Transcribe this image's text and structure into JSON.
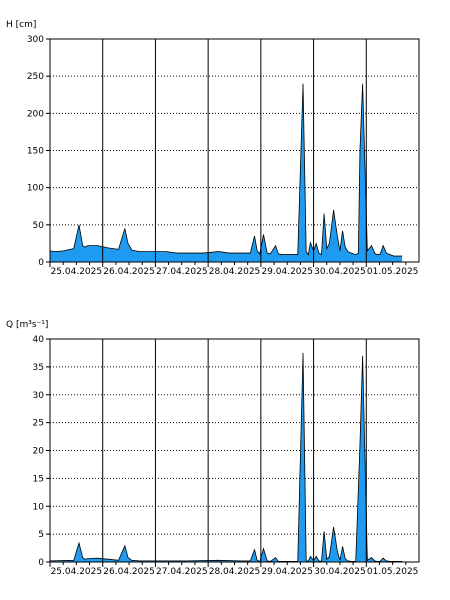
{
  "colors": {
    "fill": "#1e9bf0",
    "line": "#000000",
    "grid": "#000000",
    "background": "#ffffff"
  },
  "chart_data": [
    {
      "type": "area",
      "ylabel": "H [cm]",
      "ylim": [
        0,
        300
      ],
      "yticks": [
        "0",
        "50",
        "100",
        "150",
        "200",
        "250",
        "300"
      ],
      "xlim": [
        0,
        7
      ],
      "xticks": [
        "25.04.2025",
        "26.04.2025",
        "27.04.2025",
        "28.04.2025",
        "29.04.2025",
        "30.04.2025",
        "01.05.2025"
      ],
      "grid": true,
      "x": [
        0.0,
        0.1,
        0.25,
        0.45,
        0.55,
        0.62,
        0.66,
        0.72,
        0.9,
        1.1,
        1.3,
        1.42,
        1.48,
        1.55,
        1.7,
        1.9,
        2.2,
        2.4,
        2.6,
        2.9,
        3.2,
        3.4,
        3.6,
        3.8,
        3.88,
        3.93,
        3.98,
        4.05,
        4.12,
        4.18,
        4.28,
        4.33,
        4.4,
        4.7,
        4.8,
        4.86,
        4.9,
        4.94,
        5.0,
        5.05,
        5.1,
        5.15,
        5.2,
        5.25,
        5.3,
        5.38,
        5.45,
        5.5,
        5.55,
        5.6,
        5.65,
        5.72,
        5.8,
        5.85,
        5.88,
        5.93,
        6.02,
        6.1,
        6.16,
        6.2,
        6.26,
        6.32,
        6.38,
        6.45,
        6.52,
        6.58,
        6.64,
        6.68
      ],
      "series": [
        {
          "values": [
            15,
            14,
            15,
            18,
            50,
            22,
            20,
            22,
            22,
            19,
            17,
            45,
            25,
            16,
            14,
            14,
            14,
            12,
            12,
            12,
            14,
            12,
            12,
            12,
            35,
            15,
            11,
            37,
            12,
            11,
            22,
            11,
            10,
            10,
            240,
            14,
            10,
            26,
            15,
            25,
            12,
            10,
            65,
            18,
            25,
            70,
            35,
            15,
            42,
            20,
            14,
            12,
            10,
            12,
            150,
            240,
            15,
            22,
            12,
            10,
            10,
            22,
            12,
            10,
            8,
            8,
            8,
            8
          ]
        }
      ]
    },
    {
      "type": "area",
      "ylabel": "Q [m³s⁻¹]",
      "ylim": [
        0,
        40
      ],
      "yticks": [
        "0",
        "5",
        "10",
        "15",
        "20",
        "25",
        "30",
        "35",
        "40"
      ],
      "xlim": [
        0,
        7
      ],
      "xticks": [
        "25.04.2025",
        "26.04.2025",
        "27.04.2025",
        "28.04.2025",
        "29.04.2025",
        "30.04.2025",
        "01.05.2025"
      ],
      "grid": true,
      "x": [
        0.0,
        0.45,
        0.55,
        0.62,
        0.66,
        0.72,
        0.9,
        1.1,
        1.3,
        1.42,
        1.48,
        1.55,
        1.7,
        2.2,
        2.6,
        3.2,
        3.6,
        3.8,
        3.88,
        3.93,
        3.98,
        4.05,
        4.12,
        4.18,
        4.28,
        4.33,
        4.7,
        4.8,
        4.86,
        4.9,
        4.94,
        5.0,
        5.05,
        5.1,
        5.15,
        5.2,
        5.25,
        5.3,
        5.38,
        5.45,
        5.5,
        5.55,
        5.6,
        5.65,
        5.72,
        5.8,
        5.88,
        5.93,
        6.02,
        6.1,
        6.16,
        6.2,
        6.26,
        6.32,
        6.38,
        6.45,
        6.68
      ],
      "series": [
        {
          "values": [
            0.2,
            0.3,
            3.4,
            0.8,
            0.5,
            0.6,
            0.7,
            0.5,
            0.3,
            2.9,
            0.8,
            0.3,
            0.2,
            0.2,
            0.2,
            0.3,
            0.2,
            0.2,
            2.2,
            0.3,
            0.1,
            2.4,
            0.2,
            0.1,
            0.8,
            0.1,
            0.1,
            37.5,
            0.3,
            0.1,
            1.0,
            0.3,
            1.0,
            0.2,
            0.1,
            5.5,
            0.5,
            1.0,
            6.3,
            2.0,
            0.3,
            2.8,
            0.6,
            0.2,
            0.1,
            0.1,
            21,
            37,
            0.3,
            0.8,
            0.2,
            0.1,
            0.1,
            0.7,
            0.2,
            0.1,
            0.1
          ]
        }
      ]
    }
  ]
}
